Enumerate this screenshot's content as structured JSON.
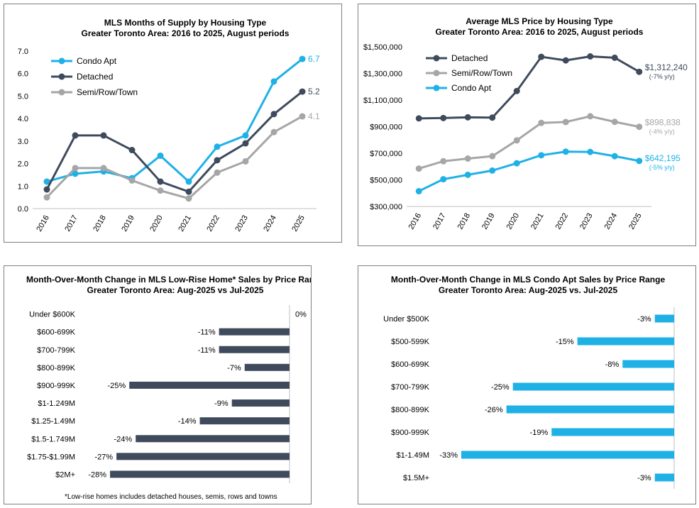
{
  "colors": {
    "condo": "#1fb1e6",
    "detached": "#3f4b5c",
    "semi": "#a6a6a6",
    "axis": "#bfbfbf",
    "text": "#000000"
  },
  "chart_data": [
    {
      "id": "supply",
      "type": "line",
      "title": "MLS Months of Supply by Housing Type",
      "subtitle": "Greater Toronto Area: 2016 to 2025, August periods",
      "xlabel": "",
      "ylabel": "",
      "x": [
        "2016",
        "2017",
        "2018",
        "2019",
        "2020",
        "2021",
        "2022",
        "2023",
        "2024",
        "2025"
      ],
      "ylim": [
        0,
        7
      ],
      "yticks": [
        0,
        1,
        2,
        3,
        4,
        5,
        6,
        7
      ],
      "ytick_labels": [
        "0.0",
        "1.0",
        "2.0",
        "3.0",
        "4.0",
        "5.0",
        "6.0",
        "7.0"
      ],
      "legend_position": "top-left",
      "series": [
        {
          "name": "Condo Apt",
          "color_key": "condo",
          "values": [
            1.2,
            1.55,
            1.65,
            1.35,
            2.35,
            1.2,
            2.75,
            3.25,
            5.65,
            6.65
          ],
          "end_label": "6.7"
        },
        {
          "name": "Detached",
          "color_key": "detached",
          "values": [
            0.85,
            3.25,
            3.25,
            2.6,
            1.2,
            0.75,
            2.15,
            2.9,
            4.2,
            5.2
          ],
          "end_label": "5.2"
        },
        {
          "name": "Semi/Row/Town",
          "color_key": "semi",
          "values": [
            0.5,
            1.8,
            1.8,
            1.25,
            0.8,
            0.45,
            1.6,
            2.1,
            3.4,
            4.1
          ],
          "end_label": "4.1"
        }
      ]
    },
    {
      "id": "price",
      "type": "line",
      "title": "Average MLS Price by Housing Type",
      "subtitle": "Greater Toronto Area: 2016 to 2025, August periods",
      "xlabel": "",
      "ylabel": "",
      "x": [
        "2016",
        "2017",
        "2018",
        "2019",
        "2020",
        "2021",
        "2022",
        "2023",
        "2024",
        "2025"
      ],
      "ylim": [
        300000,
        1500000
      ],
      "yticks": [
        300000,
        500000,
        700000,
        900000,
        1100000,
        1300000,
        1500000
      ],
      "ytick_labels": [
        "$300,000",
        "$500,000",
        "$700,000",
        "$900,000",
        "$1,100,000",
        "$1,300,000",
        "$1,500,000"
      ],
      "legend_position": "top-left",
      "series": [
        {
          "name": "Detached",
          "color_key": "detached",
          "values": [
            962000,
            965000,
            970000,
            968000,
            1168000,
            1425000,
            1398000,
            1428000,
            1418000,
            1312240
          ],
          "end_label": "$1,312,240",
          "end_sublabel": "(-7% y/y)"
        },
        {
          "name": "Semi/Row/Town",
          "color_key": "semi",
          "values": [
            585000,
            640000,
            660000,
            678000,
            797000,
            928000,
            935000,
            978000,
            936000,
            898838
          ],
          "end_label": "$898,838",
          "end_sublabel": "(-4% y/y)"
        },
        {
          "name": "Condo Apt",
          "color_key": "condo",
          "values": [
            415000,
            505000,
            538000,
            570000,
            625000,
            685000,
            712000,
            710000,
            678000,
            642195
          ],
          "end_label": "$642,195",
          "end_sublabel": "(-5% y/y)"
        }
      ]
    },
    {
      "id": "lowrise",
      "type": "bar",
      "orientation": "horizontal",
      "title": "Month-Over-Month Change in MLS Low-Rise Home* Sales by Price Range",
      "subtitle": "Greater Toronto Area: Aug-2025 vs Jul-2025",
      "color_key": "detached",
      "categories": [
        "Under $600K",
        "$600-699K",
        "$700-799K",
        "$800-899K",
        "$900-999K",
        "$1-1.249M",
        "$1.25-1.49M",
        "$1.5-1.749M",
        "$1.75-$1.99M",
        "$2M+"
      ],
      "values": [
        0,
        -11,
        -11,
        -7,
        -25,
        -9,
        -14,
        -24,
        -27,
        -28
      ],
      "value_labels": [
        "0%",
        "-11%",
        "-11%",
        "-7%",
        "-25%",
        "-9%",
        "-14%",
        "-24%",
        "-27%",
        "-28%"
      ],
      "xlim": [
        -30,
        0
      ],
      "footnote": "*Low-rise homes includes detached houses, semis, rows and towns"
    },
    {
      "id": "condo",
      "type": "bar",
      "orientation": "horizontal",
      "title": "Month-Over-Month Change in MLS Condo Apt Sales by Price Range",
      "subtitle": "Greater Toronto Area: Aug-2025 vs. Jul-2025",
      "color_key": "condo",
      "categories": [
        "Under $500K",
        "$500-599K",
        "$600-699K",
        "$700-799K",
        "$800-899K",
        "$900-999K",
        "$1-1.49M",
        "$1.5M+"
      ],
      "values": [
        -3,
        -15,
        -8,
        -25,
        -26,
        -19,
        -33,
        -3
      ],
      "value_labels": [
        "-3%",
        "-15%",
        "-8%",
        "-25%",
        "-26%",
        "-19%",
        "-33%",
        "-3%"
      ],
      "xlim": [
        -33,
        0
      ]
    }
  ]
}
